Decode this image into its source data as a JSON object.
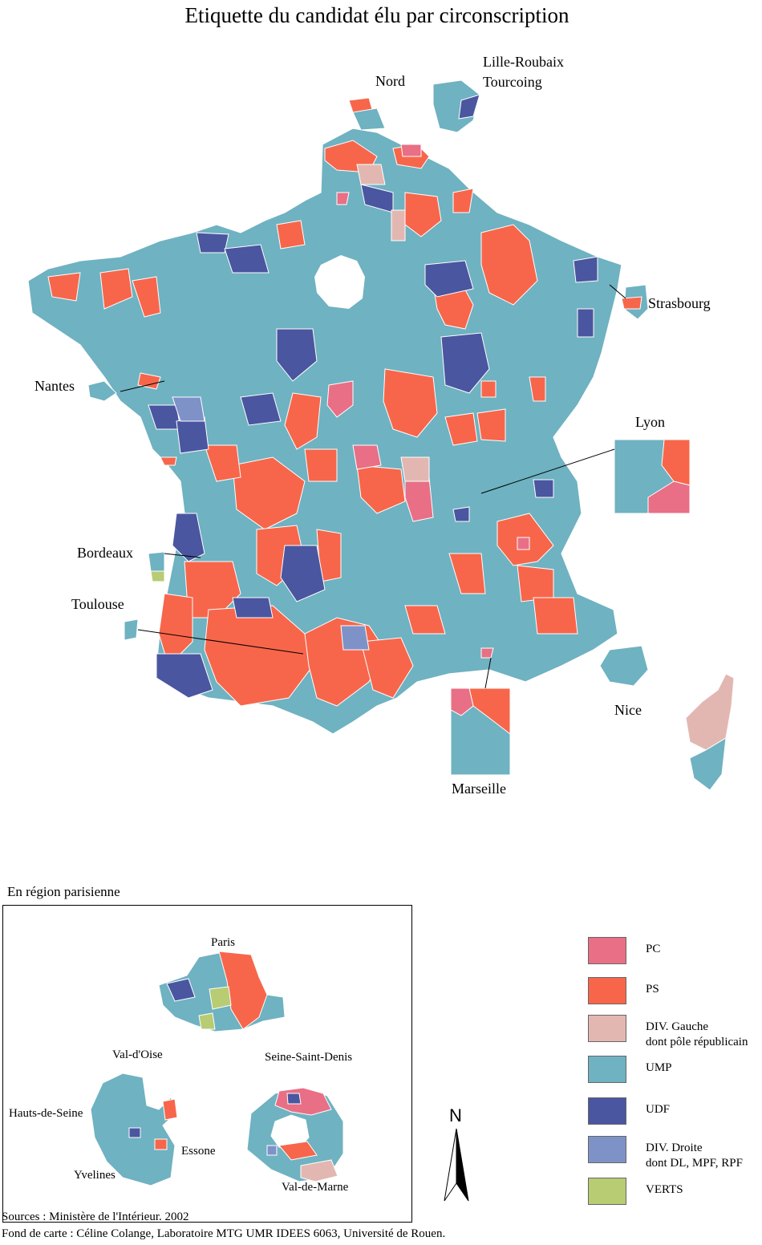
{
  "title": "Etiquette du candidat élu par circonscription",
  "colors": {
    "PC": "#e86f85",
    "PS": "#f7664b",
    "DIV_GAUCHE": "#e3b7b1",
    "UMP": "#6fb2c1",
    "UDF": "#4b56a0",
    "DIV_DROITE": "#7f92c8",
    "VERTS": "#b7cc73"
  },
  "map_labels": {
    "nord": "Nord",
    "lille": "Lille-Roubaix",
    "tourcoing": "Tourcoing",
    "strasbourg": "Strasbourg",
    "nantes": "Nantes",
    "lyon": "Lyon",
    "bordeaux": "Bordeaux",
    "toulouse": "Toulouse",
    "nice": "Nice",
    "marseille": "Marseille"
  },
  "inset": {
    "heading": "En région parisienne",
    "paris": "Paris",
    "val_oise": "Val-d'Oise",
    "seine_saint_denis": "Seine-Saint-Denis",
    "hauts_de_seine": "Hauts-de-Seine",
    "essone": "Essone",
    "yvelines": "Yvelines",
    "val_de_marne": "Val-de-Marne"
  },
  "north_arrow": "N",
  "legend": [
    {
      "key": "pc",
      "label": "PC",
      "label2": "",
      "color": "#e86f85"
    },
    {
      "key": "ps",
      "label": "PS",
      "label2": "",
      "color": "#f7664b"
    },
    {
      "key": "divg",
      "label": "DIV. Gauche",
      "label2": "dont pôle républicain",
      "color": "#e3b7b1"
    },
    {
      "key": "ump",
      "label": "UMP",
      "label2": "",
      "color": "#6fb2c1"
    },
    {
      "key": "udf",
      "label": "UDF",
      "label2": "",
      "color": "#4b56a0"
    },
    {
      "key": "divd",
      "label": "DIV. Droite",
      "label2": "dont DL, MPF, RPF",
      "color": "#7f92c8"
    },
    {
      "key": "verts",
      "label": "VERTS",
      "label2": "",
      "color": "#b7cc73"
    }
  ],
  "sources": {
    "line1": "Sources : Ministère de l'Intérieur. 2002",
    "line2": "Fond de carte : Céline Colange, Laboratoire MTG UMR IDEES 6063, Université de Rouen."
  }
}
